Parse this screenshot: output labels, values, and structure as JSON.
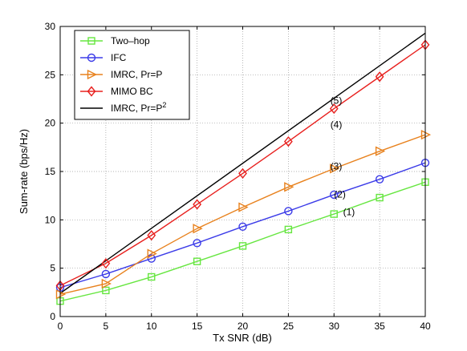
{
  "chart_data": {
    "type": "line",
    "title": "",
    "xlabel": "Tx SNR (dB)",
    "ylabel": "Sum-rate (bps/Hz)",
    "xlim": [
      0,
      40
    ],
    "ylim": [
      0,
      30
    ],
    "xticks": [
      0,
      5,
      10,
      15,
      20,
      25,
      30,
      35,
      40
    ],
    "yticks": [
      0,
      5,
      10,
      15,
      20,
      25,
      30
    ],
    "grid": true,
    "legend_position": "top-left",
    "x": [
      0,
      5,
      10,
      15,
      20,
      25,
      30,
      35,
      40
    ],
    "series": [
      {
        "name": "Two–hop",
        "color": "#66e640",
        "marker": "square",
        "values": [
          1.6,
          2.7,
          4.1,
          5.7,
          7.3,
          9.0,
          10.6,
          12.3,
          13.9
        ]
      },
      {
        "name": "IFC",
        "color": "#3b3be8",
        "marker": "circle",
        "values": [
          3.0,
          4.4,
          6.0,
          7.6,
          9.3,
          10.9,
          12.6,
          14.2,
          15.9
        ]
      },
      {
        "name": "IMRC, Pr=P",
        "color": "#e8821e",
        "marker": "triangle-right",
        "values": [
          2.3,
          3.4,
          6.5,
          9.1,
          11.3,
          13.4,
          15.3,
          17.1,
          18.8
        ]
      },
      {
        "name": "MIMO BC",
        "color": "#e8201e",
        "marker": "diamond",
        "values": [
          3.2,
          5.5,
          8.4,
          11.6,
          14.8,
          18.1,
          21.5,
          24.8,
          28.1
        ]
      },
      {
        "name": "IMRC, Pr=P",
        "name_superscript": "2",
        "color": "#000000",
        "marker": "none",
        "x": [
          0,
          40
        ],
        "values": [
          2.4,
          29.3
        ]
      }
    ],
    "annotations": [
      {
        "text": "(1)",
        "x": 31,
        "y": 10.5
      },
      {
        "text": "(2)",
        "x": 30,
        "y": 12.3
      },
      {
        "text": "(3)",
        "x": 29.6,
        "y": 15.2
      },
      {
        "text": "(4)",
        "x": 29.6,
        "y": 19.5
      },
      {
        "text": "(5)",
        "x": 29.6,
        "y": 22.0
      }
    ]
  }
}
